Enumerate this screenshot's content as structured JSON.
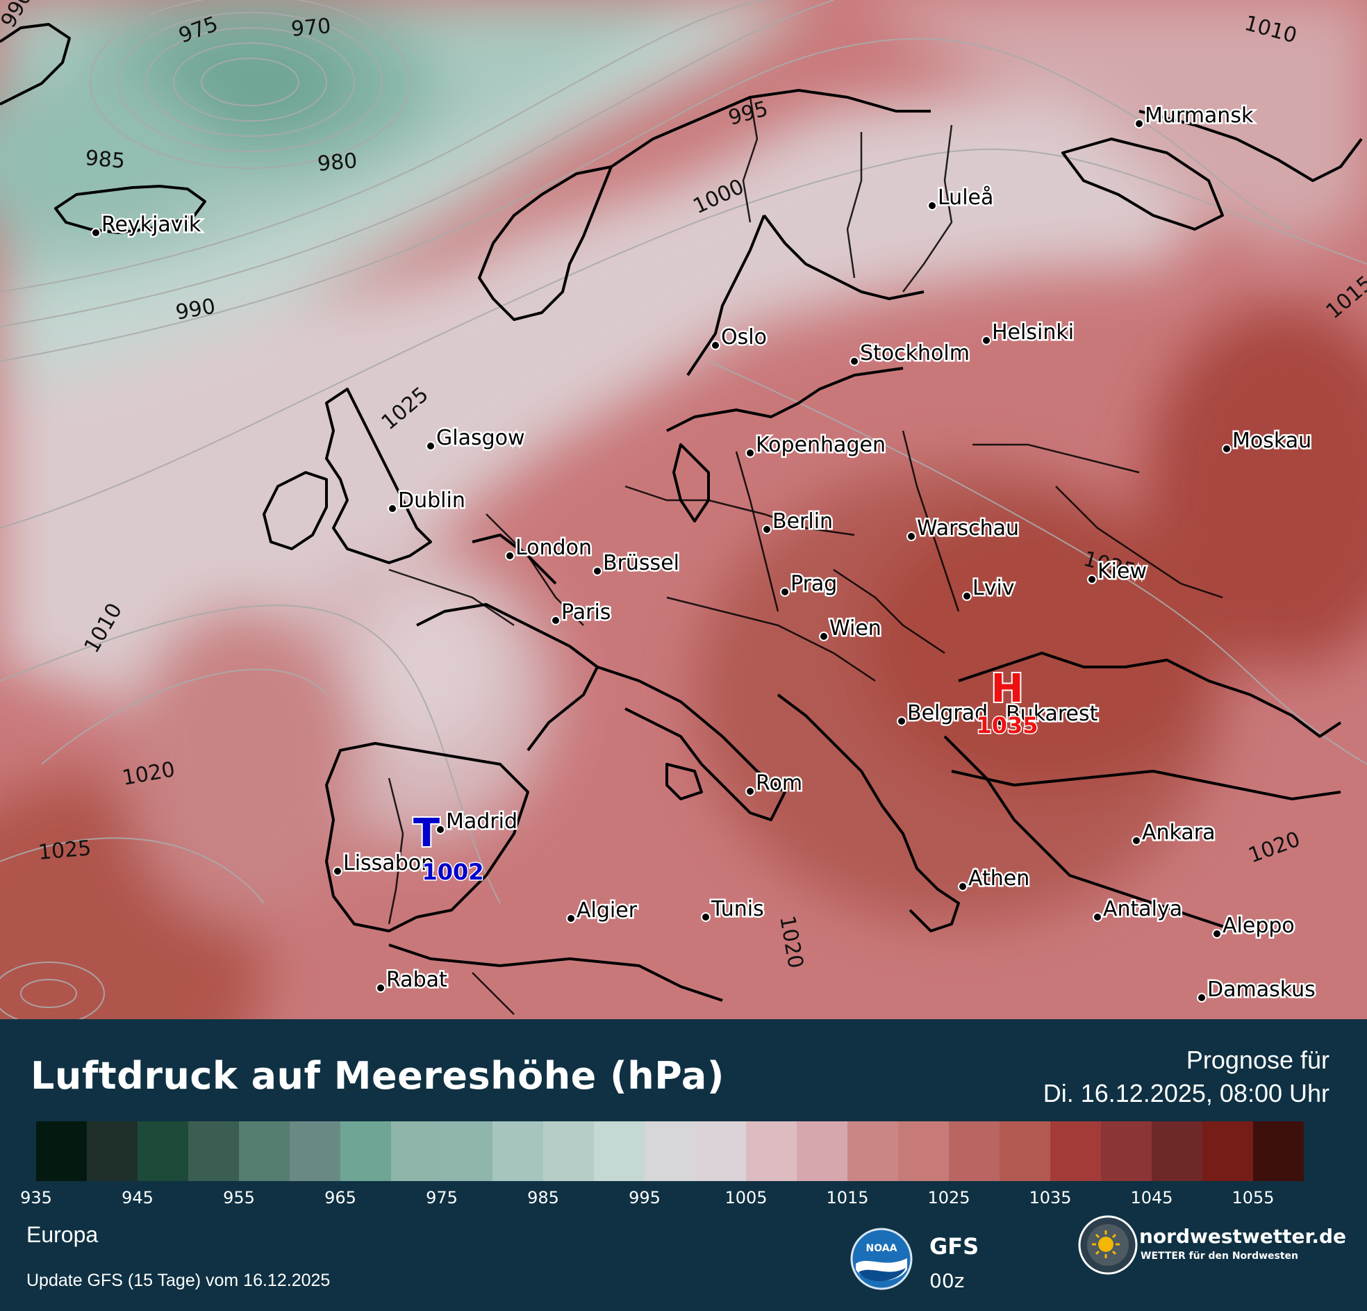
{
  "header": {
    "title": "Luftdruck auf Meereshöhe (hPa)",
    "forecast_label": "Prognose für",
    "forecast_time": "Di. 16.12.2025, 08:00 Uhr"
  },
  "footer": {
    "region": "Europa",
    "update_text": "Update GFS (15 Tage) vom 16.12.2025",
    "model_name": "GFS",
    "model_run": "00z",
    "noaa_label": "NOAA",
    "brand_name": "nordwestwetter.de",
    "brand_tagline": "WETTER für den Nordwesten"
  },
  "legend": {
    "tick_labels": [
      "935",
      "945",
      "955",
      "965",
      "975",
      "985",
      "995",
      "1005",
      "1015",
      "1025",
      "1035",
      "1045",
      "1055"
    ],
    "colors": [
      "#041a10",
      "#1f302a",
      "#1e4a3a",
      "#3b5e52",
      "#557e70",
      "#698a84",
      "#6fa595",
      "#8fb5ab",
      "#8fb5ad",
      "#a6c5bf",
      "#b6cdc7",
      "#c6d8d4",
      "#d7d6d9",
      "#dcd3d8",
      "#dcbcc0",
      "#d6a8ad",
      "#c98685",
      "#c67b79",
      "#b96662",
      "#b25a52",
      "#a33c38",
      "#8c3537",
      "#6e2828",
      "#761d18",
      "#3e100d"
    ]
  },
  "pressure_centers": [
    {
      "type": "T",
      "value": "1002",
      "color": "#0000cc"
    },
    {
      "type": "H",
      "value": "1035",
      "color": "#ee1111"
    }
  ],
  "isobar_labels": [
    "970",
    "975",
    "980",
    "985",
    "990",
    "990",
    "995",
    "1000",
    "1010",
    "1010",
    "1015",
    "1020",
    "1020",
    "1020",
    "1025",
    "1025",
    "1025",
    "1015"
  ],
  "cities": [
    "Reykjavik",
    "Murmansk",
    "Luleå",
    "Oslo",
    "Stockholm",
    "Helsinki",
    "Glasgow",
    "Kopenhagen",
    "Moskau",
    "Dublin",
    "Berlin",
    "Warschau",
    "London",
    "Brüssel",
    "Kiew",
    "Prag",
    "Lviv",
    "Paris",
    "Wien",
    "Belgrad",
    "Bukarest",
    "Rom",
    "Madrid",
    "Lissabon",
    "Ankara",
    "Athen",
    "Algier",
    "Tunis",
    "Antalya",
    "Aleppo",
    "Rabat",
    "Damaskus"
  ]
}
